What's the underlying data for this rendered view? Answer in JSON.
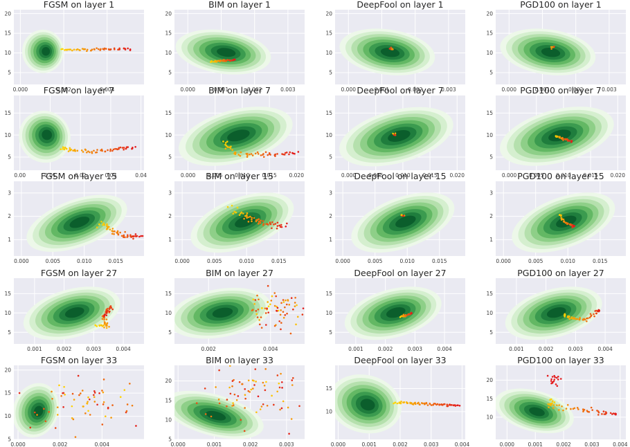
{
  "figure": {
    "description_rows": [
      "layer 1",
      "layer 7",
      "layer 15",
      "layer 27",
      "layer 33"
    ],
    "colors": {
      "panel_bg": "#eaeaf2",
      "grid": "#ffffff",
      "kde_light": "#e5f5e0",
      "kde_dark": "#00441b",
      "adv_start": "#ffd700",
      "adv_end": "#e31a1c"
    }
  },
  "chart_data": [
    {
      "type": "scatter",
      "title": "FGSM on layer 1",
      "xlim": [
        -0.0003,
        0.0057
      ],
      "ylim": [
        2,
        21
      ],
      "xticks": [
        "0.000",
        "0.002",
        "0.004"
      ],
      "xtick_values": [
        0,
        0.002,
        0.004
      ],
      "yticks": [
        "5",
        "10",
        "15",
        "20"
      ],
      "ytick_values": [
        5,
        10,
        15,
        20
      ],
      "kde": {
        "cx": 0.0011,
        "cy": 10.4,
        "sx": 0.0004,
        "sy": 2.3,
        "rot": 0
      },
      "adv": {
        "kind": "line",
        "from": [
          0.0019,
          10.8
        ],
        "to": [
          0.0051,
          11.0
        ],
        "n": 50,
        "noise": [
          4e-05,
          0.15
        ]
      }
    },
    {
      "type": "scatter",
      "title": "BIM on layer 1",
      "xlim": [
        -0.0004,
        0.0035
      ],
      "ylim": [
        2,
        21
      ],
      "xticks": [
        "0.000",
        "0.001",
        "0.002",
        "0.003"
      ],
      "xtick_values": [
        0,
        0.001,
        0.002,
        0.003
      ],
      "yticks": [
        "5",
        "10",
        "15",
        "20"
      ],
      "ytick_values": [
        5,
        10,
        15,
        20
      ],
      "kde": {
        "cx": 0.0011,
        "cy": 10.2,
        "sx": 0.0006,
        "sy": 2.3,
        "rot": -8
      },
      "adv": {
        "kind": "line",
        "from": [
          0.0007,
          7.8
        ],
        "to": [
          0.0014,
          8.2
        ],
        "n": 40,
        "noise": [
          2e-05,
          0.1
        ]
      }
    },
    {
      "type": "scatter",
      "title": "DeepFool on layer 1",
      "xlim": [
        -0.0004,
        0.0035
      ],
      "ylim": [
        2,
        21
      ],
      "xticks": [
        "0.000",
        "0.001",
        "0.002",
        "0.003"
      ],
      "xtick_values": [
        0,
        0.001,
        0.002,
        0.003
      ],
      "yticks": [
        "5",
        "10",
        "15",
        "20"
      ],
      "ytick_values": [
        5,
        10,
        15,
        20
      ],
      "kde": {
        "cx": 0.0012,
        "cy": 10.2,
        "sx": 0.0006,
        "sy": 2.4,
        "rot": -8
      },
      "adv": {
        "kind": "blob",
        "center": [
          0.0013,
          11.0
        ],
        "n": 6,
        "spread": [
          3e-05,
          0.2
        ]
      }
    },
    {
      "type": "scatter",
      "title": "PGD100 on layer 1",
      "xlim": [
        -0.0004,
        0.0035
      ],
      "ylim": [
        2,
        21
      ],
      "xticks": [
        "0.000",
        "0.001",
        "0.002",
        "0.003"
      ],
      "xtick_values": [
        0,
        0.001,
        0.002,
        0.003
      ],
      "yticks": [
        "5",
        "10",
        "15",
        "20"
      ],
      "ytick_values": [
        5,
        10,
        15,
        20
      ],
      "kde": {
        "cx": 0.0012,
        "cy": 10.2,
        "sx": 0.0006,
        "sy": 2.4,
        "rot": -8
      },
      "adv": {
        "kind": "blob",
        "center": [
          0.0013,
          11.3
        ],
        "n": 6,
        "spread": [
          3e-05,
          0.2
        ]
      }
    },
    {
      "type": "scatter",
      "title": "FGSM on layer 7",
      "xlim": [
        -0.002,
        0.041
      ],
      "ylim": [
        2,
        19
      ],
      "xticks": [
        "0.00",
        "0.01",
        "0.02",
        "0.03",
        "0.04"
      ],
      "xtick_values": [
        0,
        0.01,
        0.02,
        0.03,
        0.04
      ],
      "yticks": [
        "5",
        "10",
        "15"
      ],
      "ytick_values": [
        5,
        10,
        15
      ],
      "kde": {
        "cx": 0.0085,
        "cy": 9.8,
        "sx": 0.0035,
        "sy": 2.5,
        "rot": 40
      },
      "adv": {
        "kind": "curve",
        "points": [
          [
            0.014,
            7.2
          ],
          [
            0.018,
            6.4
          ],
          [
            0.025,
            6.3
          ],
          [
            0.032,
            6.8
          ],
          [
            0.038,
            7.3
          ]
        ],
        "n": 60,
        "noise": [
          0.0004,
          0.25
        ]
      }
    },
    {
      "type": "scatter",
      "title": "BIM on layer 7",
      "xlim": [
        -0.0025,
        0.0215
      ],
      "ylim": [
        2,
        19
      ],
      "xticks": [
        "0.000",
        "0.005",
        "0.010",
        "0.015",
        "0.020"
      ],
      "xtick_values": [
        0,
        0.005,
        0.01,
        0.015,
        0.02
      ],
      "yticks": [
        "5",
        "10",
        "15"
      ],
      "ytick_values": [
        5,
        10,
        15
      ],
      "kde": {
        "cx": 0.009,
        "cy": 9.8,
        "sx": 0.0045,
        "sy": 2.5,
        "rot": 15
      },
      "adv": {
        "kind": "curve",
        "points": [
          [
            0.0065,
            8.5
          ],
          [
            0.0085,
            6.0
          ],
          [
            0.012,
            5.5
          ],
          [
            0.016,
            5.6
          ],
          [
            0.02,
            6.0
          ]
        ],
        "n": 55,
        "noise": [
          0.0003,
          0.25
        ]
      }
    },
    {
      "type": "scatter",
      "title": "DeepFool on layer 7",
      "xlim": [
        -0.0025,
        0.0215
      ],
      "ylim": [
        2,
        19
      ],
      "xticks": [
        "0.000",
        "0.005",
        "0.010",
        "0.015",
        "0.020"
      ],
      "xtick_values": [
        0,
        0.005,
        0.01,
        0.015,
        0.02
      ],
      "yticks": [
        "5",
        "10",
        "15"
      ],
      "ytick_values": [
        5,
        10,
        15
      ],
      "kde": {
        "cx": 0.009,
        "cy": 9.7,
        "sx": 0.0045,
        "sy": 2.5,
        "rot": 15
      },
      "adv": {
        "kind": "blob",
        "center": [
          0.0085,
          10.0
        ],
        "n": 6,
        "spread": [
          0.0002,
          0.2
        ]
      }
    },
    {
      "type": "scatter",
      "title": "PGD100 on layer 7",
      "xlim": [
        -0.0025,
        0.0215
      ],
      "ylim": [
        2,
        19
      ],
      "xticks": [
        "0.000",
        "0.005",
        "0.010",
        "0.015",
        "0.020"
      ],
      "xtick_values": [
        0,
        0.005,
        0.01,
        0.015,
        0.02
      ],
      "yticks": [
        "5",
        "10",
        "15"
      ],
      "ytick_values": [
        5,
        10,
        15
      ],
      "kde": {
        "cx": 0.009,
        "cy": 9.8,
        "sx": 0.0045,
        "sy": 2.5,
        "rot": 15
      },
      "adv": {
        "kind": "line",
        "from": [
          0.0085,
          9.8
        ],
        "to": [
          0.0115,
          8.6
        ],
        "n": 30,
        "noise": [
          0.0001,
          0.1
        ]
      }
    },
    {
      "type": "scatter",
      "title": "FGSM on layer 15",
      "xlim": [
        -0.0012,
        0.0195
      ],
      "ylim": [
        0.3,
        3.5
      ],
      "xticks": [
        "0.000",
        "0.005",
        "0.010",
        "0.015"
      ],
      "xtick_values": [
        0,
        0.005,
        0.01,
        0.015
      ],
      "yticks": [
        "1",
        "2",
        "3"
      ],
      "ytick_values": [
        1,
        2,
        3
      ],
      "kde": {
        "cx": 0.009,
        "cy": 1.72,
        "sx": 0.0035,
        "sy": 0.42,
        "rot": 20
      },
      "adv": {
        "kind": "curve",
        "points": [
          [
            0.0125,
            1.7
          ],
          [
            0.0145,
            1.4
          ],
          [
            0.0165,
            1.15
          ],
          [
            0.019,
            1.12
          ]
        ],
        "n": 55,
        "noise": [
          0.0003,
          0.06
        ]
      }
    },
    {
      "type": "scatter",
      "title": "BIM on layer 15",
      "xlim": [
        -0.0012,
        0.019
      ],
      "ylim": [
        0.3,
        3.5
      ],
      "xticks": [
        "0.000",
        "0.005",
        "0.010",
        "0.015"
      ],
      "xtick_values": [
        0,
        0.005,
        0.01,
        0.015
      ],
      "yticks": [
        "1",
        "2",
        "3"
      ],
      "ytick_values": [
        1,
        2,
        3
      ],
      "kde": {
        "cx": 0.0095,
        "cy": 1.75,
        "sx": 0.0035,
        "sy": 0.45,
        "rot": 20
      },
      "adv": {
        "kind": "curve",
        "points": [
          [
            0.0078,
            2.3
          ],
          [
            0.0105,
            1.9
          ],
          [
            0.013,
            1.7
          ],
          [
            0.016,
            1.6
          ]
        ],
        "n": 55,
        "noise": [
          0.0004,
          0.08
        ]
      }
    },
    {
      "type": "scatter",
      "title": "DeepFool on layer 15",
      "xlim": [
        -0.0012,
        0.019
      ],
      "ylim": [
        0.3,
        3.5
      ],
      "xticks": [
        "0.000",
        "0.005",
        "0.010",
        "0.015"
      ],
      "xtick_values": [
        0,
        0.005,
        0.01,
        0.015
      ],
      "yticks": [
        "1",
        "2",
        "3"
      ],
      "ytick_values": [
        1,
        2,
        3
      ],
      "kde": {
        "cx": 0.0095,
        "cy": 1.75,
        "sx": 0.0035,
        "sy": 0.45,
        "rot": 20
      },
      "adv": {
        "kind": "blob",
        "center": [
          0.0093,
          2.05
        ],
        "n": 6,
        "spread": [
          0.0002,
          0.04
        ]
      }
    },
    {
      "type": "scatter",
      "title": "PGD100 on layer 15",
      "xlim": [
        -0.0012,
        0.019
      ],
      "ylim": [
        0.3,
        3.5
      ],
      "xticks": [
        "0.000",
        "0.005",
        "0.010",
        "0.015"
      ],
      "xtick_values": [
        0,
        0.005,
        0.01,
        0.015
      ],
      "yticks": [
        "1",
        "2",
        "3"
      ],
      "ytick_values": [
        1,
        2,
        3
      ],
      "kde": {
        "cx": 0.0095,
        "cy": 1.75,
        "sx": 0.0035,
        "sy": 0.45,
        "rot": 20
      },
      "adv": {
        "kind": "curve",
        "points": [
          [
            0.0087,
            2.1
          ],
          [
            0.0092,
            1.8
          ],
          [
            0.0105,
            1.6
          ],
          [
            0.011,
            1.55
          ]
        ],
        "n": 30,
        "noise": [
          0.0001,
          0.03
        ]
      }
    },
    {
      "type": "scatter",
      "title": "FGSM on layer 27",
      "xlim": [
        0.0003,
        0.0047
      ],
      "ylim": [
        2,
        19
      ],
      "xticks": [
        "0.001",
        "0.002",
        "0.003",
        "0.004"
      ],
      "xtick_values": [
        0.001,
        0.002,
        0.003,
        0.004
      ],
      "yticks": [
        "5",
        "10",
        "15"
      ],
      "ytick_values": [
        5,
        10,
        15
      ],
      "kde": {
        "cx": 0.0023,
        "cy": 10.0,
        "sx": 0.0007,
        "sy": 2.6,
        "rot": 15
      },
      "adv": {
        "kind": "curve",
        "points": [
          [
            0.0031,
            6.8
          ],
          [
            0.0035,
            6.5
          ],
          [
            0.0033,
            8.5
          ],
          [
            0.0036,
            11.8
          ],
          [
            0.0034,
            9.2
          ]
        ],
        "n": 55,
        "noise": [
          5e-05,
          0.3
        ]
      }
    },
    {
      "type": "scatter",
      "title": "BIM on layer 27",
      "xlim": [
        0.0009,
        0.0051
      ],
      "ylim": [
        2,
        19
      ],
      "xticks": [
        "0.002",
        "0.004"
      ],
      "xtick_values": [
        0.002,
        0.004
      ],
      "yticks": [
        "5",
        "10",
        "15"
      ],
      "ytick_values": [
        5,
        10,
        15
      ],
      "kde": {
        "cx": 0.0024,
        "cy": 10.0,
        "sx": 0.0007,
        "sy": 2.6,
        "rot": 10
      },
      "adv": {
        "kind": "cloud",
        "center": [
          0.0042,
          10.5
        ],
        "n": 70,
        "spread": [
          0.00045,
          2.6
        ]
      }
    },
    {
      "type": "scatter",
      "title": "DeepFool on layer 27",
      "xlim": [
        0.0003,
        0.0047
      ],
      "ylim": [
        2,
        19
      ],
      "xticks": [
        "0.001",
        "0.002",
        "0.003",
        "0.004"
      ],
      "xtick_values": [
        0.001,
        0.002,
        0.003,
        0.004
      ],
      "yticks": [
        "5",
        "10",
        "15"
      ],
      "ytick_values": [
        5,
        10,
        15
      ],
      "kde": {
        "cx": 0.0023,
        "cy": 10.0,
        "sx": 0.0007,
        "sy": 2.6,
        "rot": 15
      },
      "adv": {
        "kind": "line",
        "from": [
          0.0025,
          9.0
        ],
        "to": [
          0.0029,
          9.8
        ],
        "n": 20,
        "noise": [
          2e-05,
          0.15
        ]
      }
    },
    {
      "type": "scatter",
      "title": "PGD100 on layer 27",
      "xlim": [
        0.0003,
        0.0047
      ],
      "ylim": [
        2,
        19
      ],
      "xticks": [
        "0.001",
        "0.002",
        "0.003",
        "0.004"
      ],
      "xtick_values": [
        0.001,
        0.002,
        0.003,
        0.004
      ],
      "yticks": [
        "5",
        "10",
        "15"
      ],
      "ytick_values": [
        5,
        10,
        15
      ],
      "kde": {
        "cx": 0.0023,
        "cy": 10.0,
        "sx": 0.0007,
        "sy": 2.6,
        "rot": 15
      },
      "adv": {
        "kind": "curve",
        "points": [
          [
            0.0026,
            9.5
          ],
          [
            0.0029,
            8.5
          ],
          [
            0.0033,
            8.2
          ],
          [
            0.0037,
            10.2
          ],
          [
            0.0038,
            10.8
          ]
        ],
        "n": 45,
        "noise": [
          4e-05,
          0.25
        ]
      }
    },
    {
      "type": "scatter",
      "title": "FGSM on layer 33",
      "xlim": [
        -0.0002,
        0.006
      ],
      "ylim": [
        5,
        21
      ],
      "xticks": [
        "0.000",
        "0.002",
        "0.004"
      ],
      "xtick_values": [
        0,
        0.002,
        0.004
      ],
      "yticks": [
        "5",
        "10",
        "15",
        "20"
      ],
      "ytick_values": [
        5,
        10,
        15,
        20
      ],
      "kde": {
        "cx": 0.0009,
        "cy": 11.2,
        "sx": 0.00045,
        "sy": 2.5,
        "rot": -20
      },
      "adv": {
        "kind": "cloud",
        "center": [
          0.003,
          13.5
        ],
        "n": 65,
        "spread": [
          0.0014,
          2.8
        ]
      }
    },
    {
      "type": "scatter",
      "title": "BIM on layer 33",
      "xlim": [
        -0.0001,
        0.0035
      ],
      "ylim": [
        5,
        24
      ],
      "xticks": [
        "0.000",
        "0.001",
        "0.002",
        "0.003"
      ],
      "xtick_values": [
        0,
        0.001,
        0.002,
        0.003
      ],
      "yticks": [
        "5",
        "10",
        "15",
        "20"
      ],
      "ytick_values": [
        5,
        10,
        15,
        20
      ],
      "kde": {
        "cx": 0.001,
        "cy": 11.2,
        "sx": 0.0006,
        "sy": 2.2,
        "rot": -15
      },
      "adv": {
        "kind": "cloud",
        "center": [
          0.0021,
          16.5
        ],
        "n": 75,
        "spread": [
          0.0007,
          3.4
        ]
      }
    },
    {
      "type": "scatter",
      "title": "DeepFool on layer 33",
      "xlim": [
        -0.0001,
        0.0041
      ],
      "ylim": [
        4,
        20
      ],
      "xticks": [
        "0.000",
        "0.001",
        "0.002",
        "0.003",
        "0.004"
      ],
      "xtick_values": [
        0,
        0.001,
        0.002,
        0.003,
        0.004
      ],
      "yticks": [
        "10",
        "15"
      ],
      "ytick_values": [
        10,
        15
      ],
      "kde": {
        "cx": 0.0009,
        "cy": 11.6,
        "sx": 0.0005,
        "sy": 2.6,
        "rot": -15
      },
      "adv": {
        "kind": "line",
        "from": [
          0.0018,
          12.0
        ],
        "to": [
          0.0039,
          11.3
        ],
        "n": 65,
        "noise": [
          2e-05,
          0.12
        ]
      }
    },
    {
      "type": "scatter",
      "title": "PGD100 on layer 33",
      "xlim": [
        -0.0004,
        0.0042
      ],
      "ylim": [
        4,
        24
      ],
      "xticks": [
        "0.000",
        "0.001",
        "0.002",
        "0.003",
        "0.004"
      ],
      "xtick_values": [
        0,
        0.001,
        0.002,
        0.003,
        0.004
      ],
      "yticks": [
        "10",
        "15",
        "20"
      ],
      "ytick_values": [
        10,
        15,
        20
      ],
      "kde": {
        "cx": 0.001,
        "cy": 11.6,
        "sx": 0.0006,
        "sy": 2.3,
        "rot": -15
      },
      "adv": {
        "kind": "curve",
        "points": [
          [
            0.0015,
            14.5
          ],
          [
            0.0016,
            13.0
          ],
          [
            0.0025,
            12.2
          ],
          [
            0.0033,
            11.2
          ],
          [
            0.0039,
            11.0
          ]
        ],
        "n": 55,
        "noise": [
          8e-05,
          0.4
        ],
        "extra": {
          "center": [
            0.0017,
            20.0
          ],
          "n": 18,
          "spread": [
            0.0001,
            0.7
          ]
        }
      }
    }
  ]
}
